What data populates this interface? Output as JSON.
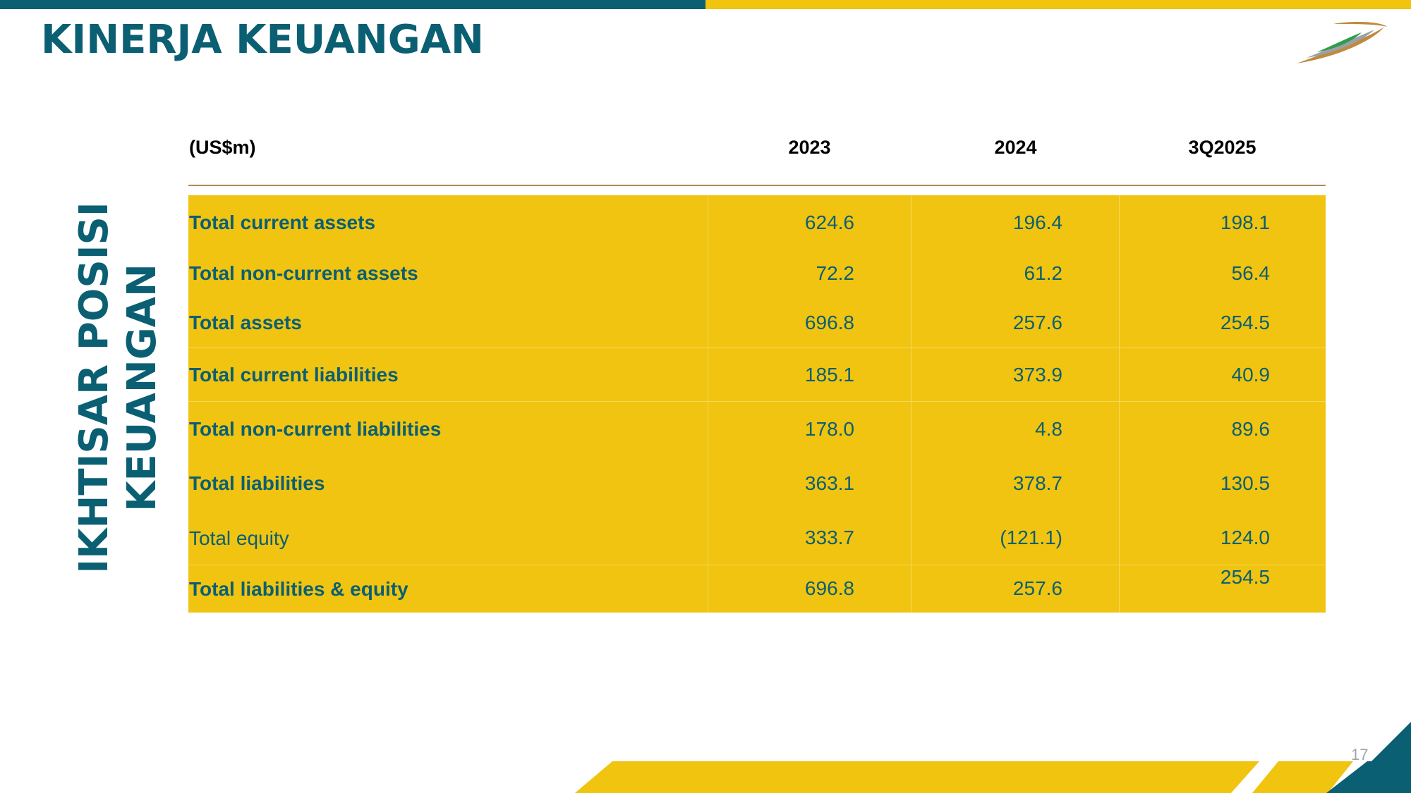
{
  "slide": {
    "title": "KINERJA KEUANGAN",
    "side_title_line1": "IKHTISAR POSISI",
    "side_title_line2": "KEUANGAN",
    "page_number": "17"
  },
  "colors": {
    "teal": "#0b5f72",
    "gold": "#f0c40f",
    "rule": "#b08a5a",
    "text_dark": "#000000"
  },
  "table": {
    "unit_label": "(US$m)",
    "columns": [
      "2023",
      "2024",
      "3Q2025"
    ],
    "rows": [
      {
        "label": "Total current assets",
        "bold": true,
        "values": [
          "624.6",
          "196.4",
          "198.1"
        ]
      },
      {
        "label": "Total non-current  assets",
        "bold": true,
        "values": [
          "72.2",
          "61.2",
          "56.4"
        ]
      },
      {
        "label": "Total assets",
        "bold": true,
        "values": [
          "696.8",
          "257.6",
          "254.5"
        ]
      },
      {
        "label": "Total current liabilities",
        "bold": true,
        "values": [
          "185.1",
          "373.9",
          "40.9"
        ]
      },
      {
        "label": "Total non-current  liabilities",
        "bold": true,
        "values": [
          "178.0",
          "4.8",
          "89.6"
        ]
      },
      {
        "label": "Total liabilities",
        "bold": true,
        "values": [
          "363.1",
          "378.7",
          "130.5"
        ]
      },
      {
        "label": "Total equity",
        "bold": false,
        "values": [
          "333.7",
          "(121.1)",
          "124.0"
        ]
      },
      {
        "label": "Total liabilities & equity",
        "bold": true,
        "values": [
          "696.8",
          "257.6",
          "254.5"
        ]
      }
    ]
  },
  "icons": {
    "logo": "company-swoosh-logo"
  }
}
